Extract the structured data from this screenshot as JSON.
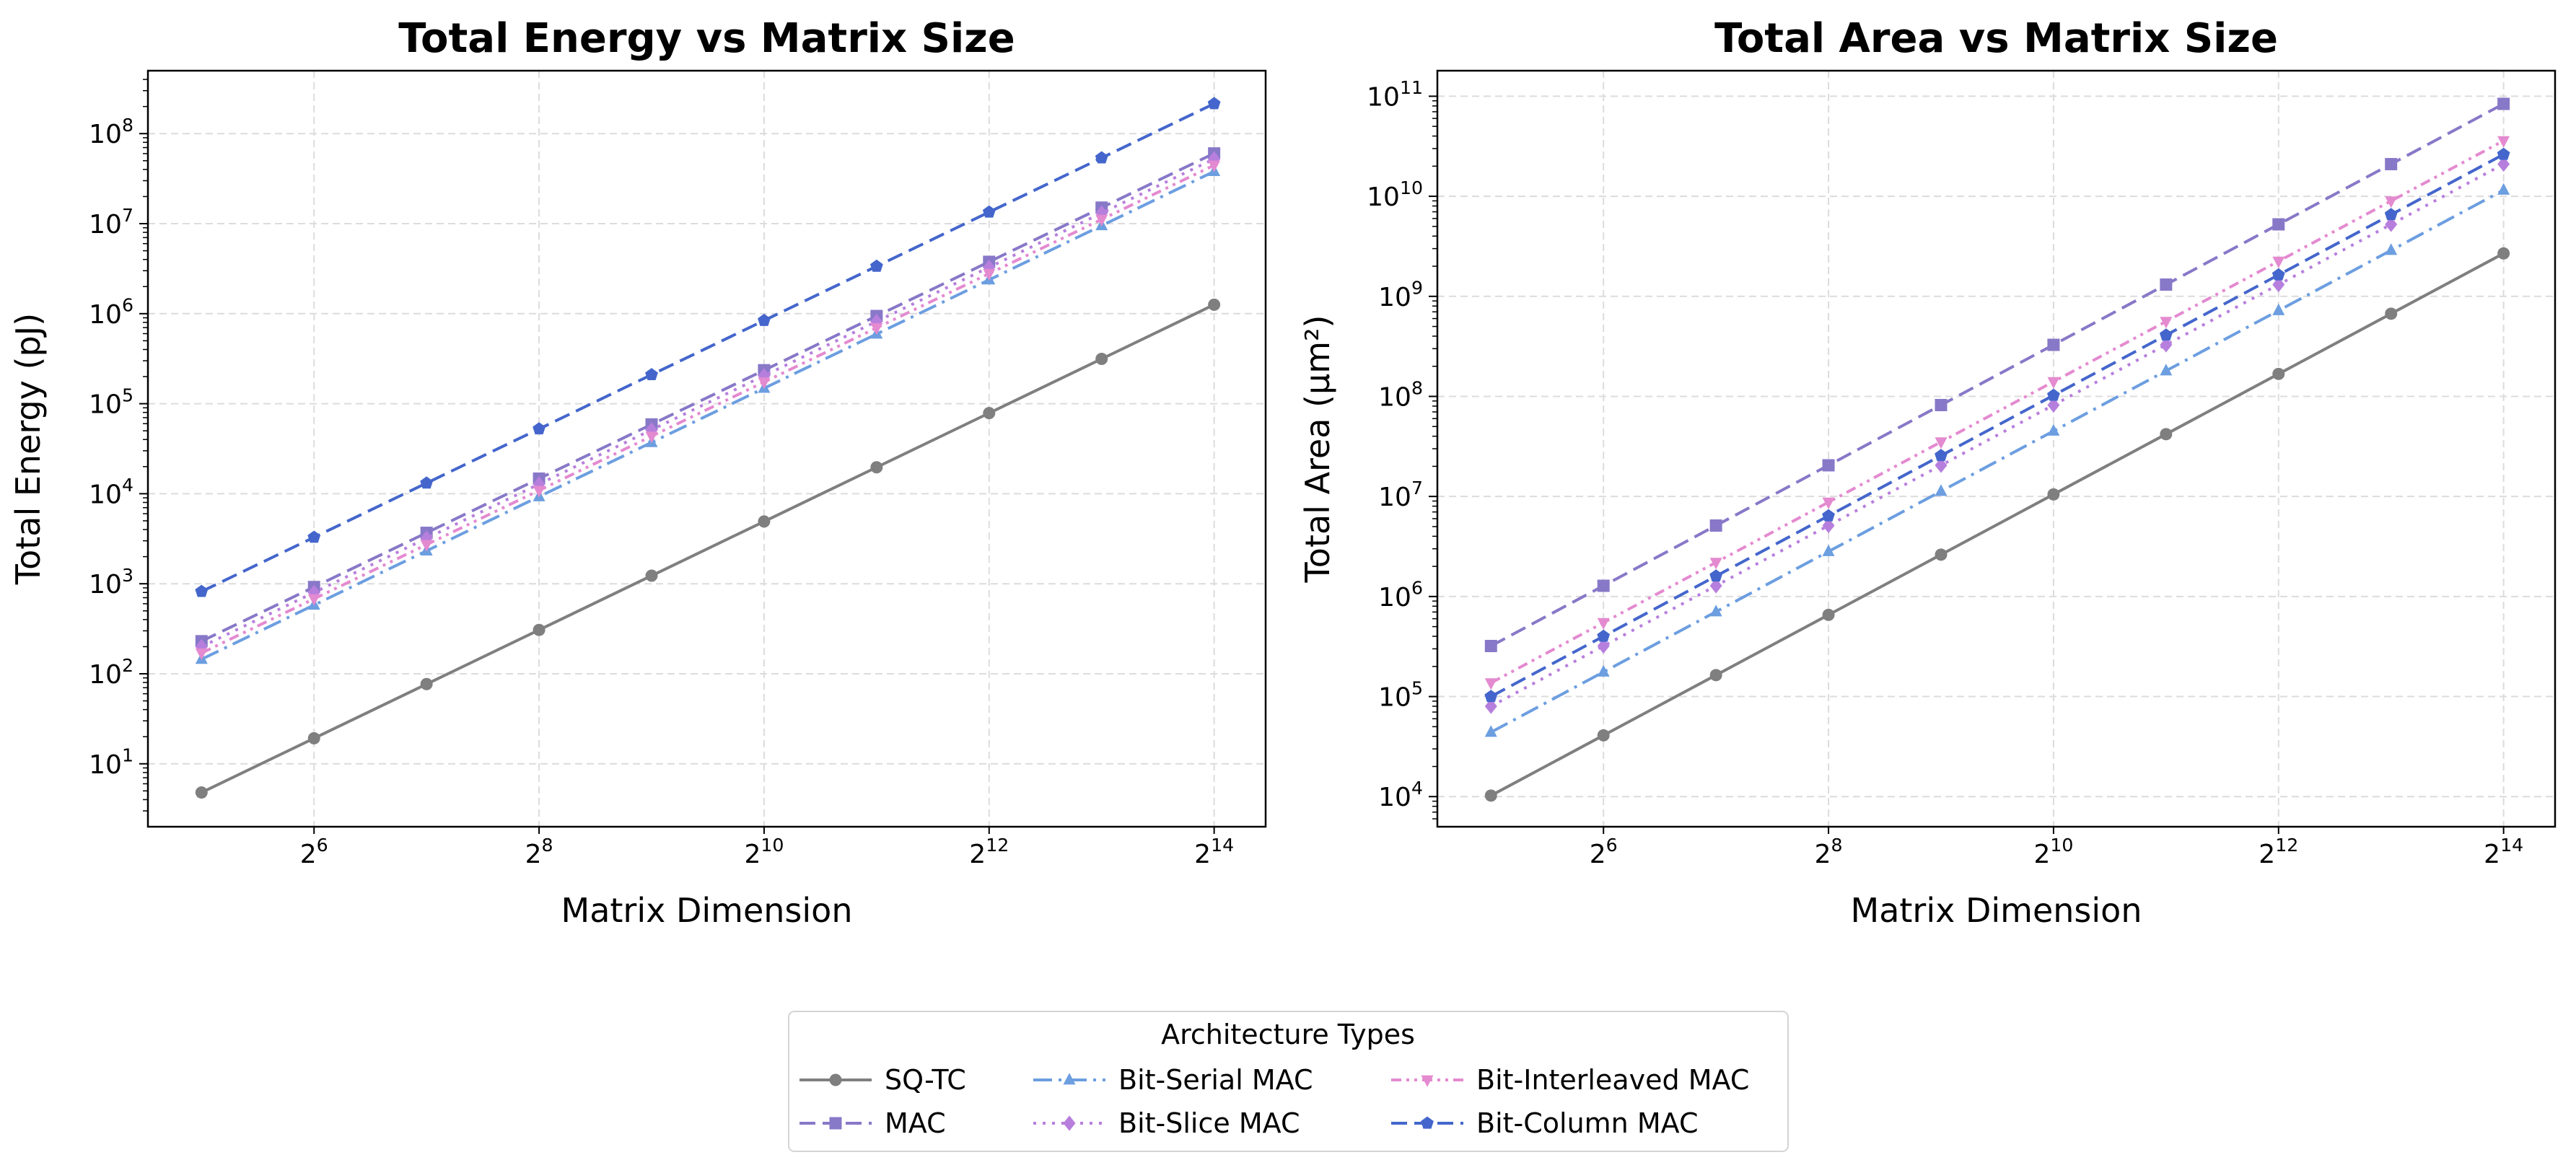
{
  "figure": {
    "legend_title": "Architecture Types",
    "legend_placement": "bottom-center"
  },
  "styles": {
    "SQ-TC": {
      "color": "#7f7f7f",
      "dash": "solid",
      "marker": "circle"
    },
    "MAC": {
      "color": "#8878c8",
      "dash": "dashed",
      "marker": "square"
    },
    "Bit-Serial MAC": {
      "color": "#6c9ee0",
      "dash": "dashdot",
      "marker": "triangle-up"
    },
    "Bit-Slice MAC": {
      "color": "#b77fdd",
      "dash": "dotted",
      "marker": "diamond"
    },
    "Bit-Interleaved MAC": {
      "color": "#e48ad0",
      "dash": "dashdotdot",
      "marker": "triangle-down"
    },
    "Bit-Column MAC": {
      "color": "#4466cc",
      "dash": "dashed",
      "marker": "pentagon"
    }
  },
  "chart_data": [
    {
      "type": "line",
      "title": "Total Energy vs Matrix Size",
      "xlabel": "Matrix Dimension",
      "ylabel": "Total Energy (pJ)",
      "xscale": "log2",
      "yscale": "log10",
      "grid": true,
      "xlim": [
        23,
        22500
      ],
      "ylim": [
        2,
        500000000
      ],
      "xticks": [
        64,
        256,
        1024,
        4096,
        16384
      ],
      "xtick_labels": [
        {
          "base": "2",
          "exp": "6"
        },
        {
          "base": "2",
          "exp": "8"
        },
        {
          "base": "2",
          "exp": "10"
        },
        {
          "base": "2",
          "exp": "12"
        },
        {
          "base": "2",
          "exp": "14"
        }
      ],
      "yticks": [
        10,
        100,
        1000,
        10000,
        100000,
        1000000,
        10000000,
        100000000
      ],
      "ytick_labels": [
        {
          "base": "10",
          "exp": "1"
        },
        {
          "base": "10",
          "exp": "2"
        },
        {
          "base": "10",
          "exp": "3"
        },
        {
          "base": "10",
          "exp": "4"
        },
        {
          "base": "10",
          "exp": "5"
        },
        {
          "base": "10",
          "exp": "6"
        },
        {
          "base": "10",
          "exp": "7"
        },
        {
          "base": "10",
          "exp": "8"
        }
      ],
      "x": [
        32,
        64,
        128,
        256,
        512,
        1024,
        2048,
        4096,
        8192,
        16384
      ],
      "series": [
        {
          "name": "SQ-TC",
          "values": [
            4.8,
            19.2,
            76.8,
            307,
            1229,
            4915,
            19661,
            78643,
            314573,
            1258291
          ]
        },
        {
          "name": "MAC",
          "values": [
            230,
            920,
            3680,
            14720,
            58880,
            235520,
            942080,
            3768320,
            15073280,
            60293120
          ]
        },
        {
          "name": "Bit-Serial MAC",
          "values": [
            145,
            580,
            2320,
            9280,
            37120,
            148480,
            593920,
            2375680,
            9502720,
            38010880
          ]
        },
        {
          "name": "Bit-Slice MAC",
          "values": [
            200,
            800,
            3200,
            12800,
            51200,
            204800,
            819200,
            3276800,
            13107200,
            52428800
          ]
        },
        {
          "name": "Bit-Interleaved MAC",
          "values": [
            170,
            680,
            2720,
            10880,
            43520,
            174080,
            696320,
            2785280,
            11141120,
            44564480
          ]
        },
        {
          "name": "Bit-Column MAC",
          "values": [
            820,
            3280,
            13120,
            52480,
            209920,
            839680,
            3358720,
            13434880,
            53739520,
            214958080
          ]
        }
      ]
    },
    {
      "type": "line",
      "title": "Total Area vs Matrix Size",
      "xlabel": "Matrix Dimension",
      "ylabel": "Total Area (µm²)",
      "xscale": "log2",
      "yscale": "log10",
      "grid": true,
      "xlim": [
        23,
        22500
      ],
      "ylim": [
        5000,
        180000000000
      ],
      "xticks": [
        64,
        256,
        1024,
        4096,
        16384
      ],
      "xtick_labels": [
        {
          "base": "2",
          "exp": "6"
        },
        {
          "base": "2",
          "exp": "8"
        },
        {
          "base": "2",
          "exp": "10"
        },
        {
          "base": "2",
          "exp": "12"
        },
        {
          "base": "2",
          "exp": "14"
        }
      ],
      "yticks": [
        10000,
        100000,
        1000000,
        10000000,
        100000000,
        1000000000,
        10000000000,
        100000000000
      ],
      "ytick_labels": [
        {
          "base": "10",
          "exp": "4"
        },
        {
          "base": "10",
          "exp": "5"
        },
        {
          "base": "10",
          "exp": "6"
        },
        {
          "base": "10",
          "exp": "7"
        },
        {
          "base": "10",
          "exp": "8"
        },
        {
          "base": "10",
          "exp": "9"
        },
        {
          "base": "10",
          "exp": "10"
        },
        {
          "base": "10",
          "exp": "11"
        }
      ],
      "x": [
        32,
        64,
        128,
        256,
        512,
        1024,
        2048,
        4096,
        8192,
        16384
      ],
      "series": [
        {
          "name": "SQ-TC",
          "values": [
            10240,
            40960,
            163840,
            655360,
            2621440,
            10485760,
            41943040,
            167772160,
            671088640,
            2684354560
          ]
        },
        {
          "name": "MAC",
          "values": [
            320000,
            1280000,
            5120000,
            20480000,
            81920000,
            327680000,
            1310720000,
            5242880000,
            20971520000,
            83886080000
          ]
        },
        {
          "name": "Bit-Serial MAC",
          "values": [
            44000,
            176000,
            704000,
            2816000,
            11264000,
            45056000,
            180224000,
            720896000,
            2883584000,
            11534336000
          ]
        },
        {
          "name": "Bit-Slice MAC",
          "values": [
            80000,
            320000,
            1280000,
            5120000,
            20480000,
            81920000,
            327680000,
            1310720000,
            5242880000,
            20971520000
          ]
        },
        {
          "name": "Bit-Interleaved MAC",
          "values": [
            137000,
            548000,
            2192000,
            8768000,
            35072000,
            140288000,
            561152000,
            2244608000,
            8978432000,
            35913728000
          ]
        },
        {
          "name": "Bit-Column MAC",
          "values": [
            100000,
            400000,
            1600000,
            6400000,
            25600000,
            102400000,
            409600000,
            1638400000,
            6553600000,
            26214400000
          ]
        }
      ]
    }
  ],
  "legend": {
    "title": "Architecture Types",
    "entries": [
      "SQ-TC",
      "MAC",
      "Bit-Serial MAC",
      "Bit-Slice MAC",
      "Bit-Interleaved MAC",
      "Bit-Column MAC"
    ]
  }
}
